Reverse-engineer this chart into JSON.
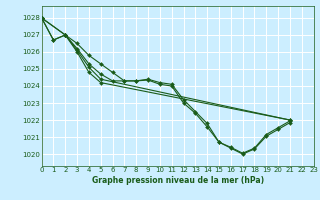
{
  "background_color": "#cceeff",
  "grid_color": "#ffffff",
  "line_color": "#1a5c1a",
  "marker_color": "#1a5c1a",
  "xlabel": "Graphe pression niveau de la mer (hPa)",
  "xlabel_color": "#1a5c1a",
  "xlim": [
    0,
    23
  ],
  "ylim": [
    1019.3,
    1028.7
  ],
  "yticks": [
    1020,
    1021,
    1022,
    1023,
    1024,
    1025,
    1026,
    1027,
    1028
  ],
  "xticks": [
    0,
    1,
    2,
    3,
    4,
    5,
    6,
    7,
    8,
    9,
    10,
    11,
    12,
    13,
    14,
    15,
    16,
    17,
    18,
    19,
    20,
    21,
    22,
    23
  ],
  "series": [
    {
      "x": [
        0,
        1,
        2,
        3,
        4,
        5,
        6,
        7,
        8,
        9,
        10,
        11,
        12,
        13,
        14,
        15,
        16,
        17,
        18,
        19,
        20,
        21
      ],
      "y": [
        1028.0,
        1026.7,
        1027.0,
        1026.5,
        1025.8,
        1025.3,
        1024.8,
        1024.3,
        1024.3,
        1024.4,
        1024.2,
        1024.1,
        1023.2,
        1022.5,
        1021.8,
        1020.7,
        1020.4,
        1020.05,
        1020.35,
        1021.15,
        1021.55,
        1021.95
      ]
    },
    {
      "x": [
        0,
        1,
        2,
        3,
        4,
        5,
        6,
        7,
        8,
        9,
        10,
        11,
        12,
        13,
        14,
        15,
        16,
        17,
        18,
        19,
        20,
        21
      ],
      "y": [
        1028.0,
        1026.7,
        1027.0,
        1026.2,
        1025.3,
        1024.7,
        1024.3,
        1024.3,
        1024.3,
        1024.35,
        1024.1,
        1024.0,
        1023.0,
        1022.4,
        1021.6,
        1020.7,
        1020.35,
        1020.0,
        1020.3,
        1021.05,
        1021.45,
        1021.85
      ]
    },
    {
      "x": [
        0,
        2,
        3,
        4,
        5,
        21
      ],
      "y": [
        1028.0,
        1027.0,
        1026.1,
        1025.1,
        1024.4,
        1022.0
      ]
    },
    {
      "x": [
        0,
        2,
        3,
        4,
        5,
        21
      ],
      "y": [
        1028.0,
        1027.0,
        1026.0,
        1024.8,
        1024.2,
        1022.0
      ]
    }
  ]
}
